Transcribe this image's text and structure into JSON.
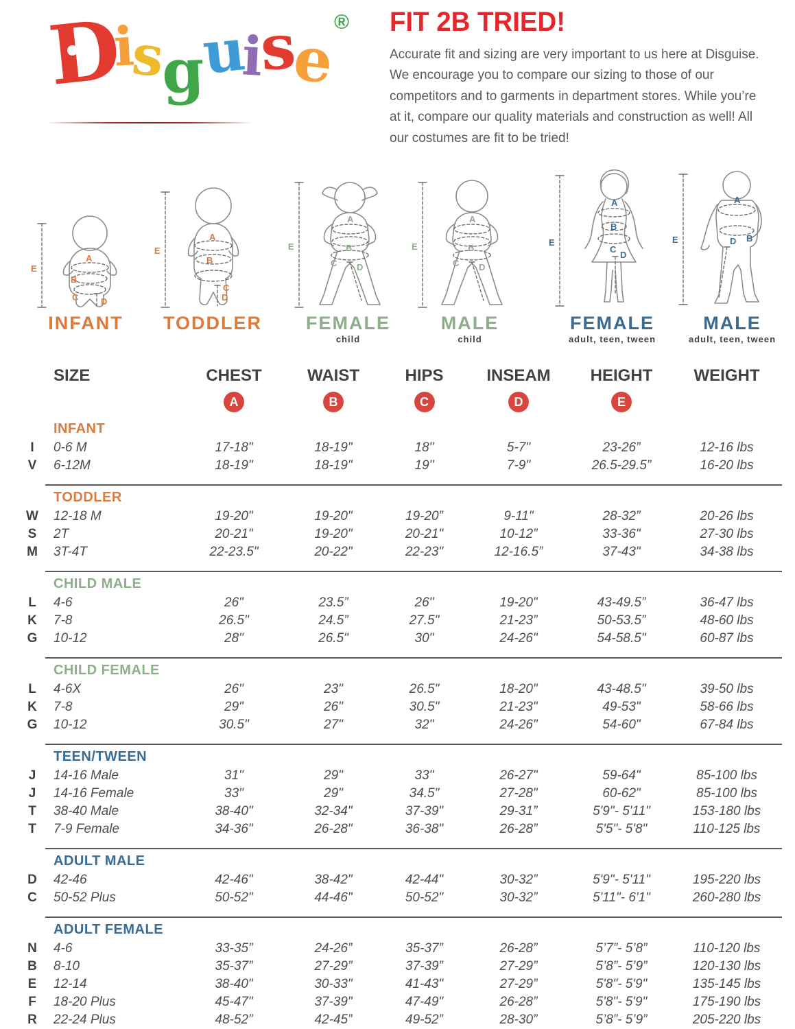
{
  "brand": {
    "name": "Disguise",
    "letters": [
      {
        "ch": "D",
        "color": "#e23a2e"
      },
      {
        "ch": "i",
        "color": "#f5a03a"
      },
      {
        "ch": "s",
        "color": "#efb92c"
      },
      {
        "ch": "g",
        "color": "#3fa748"
      },
      {
        "ch": "u",
        "color": "#3d9bd6"
      },
      {
        "ch": "i",
        "color": "#8f6db5"
      },
      {
        "ch": "s",
        "color": "#e23a2e"
      },
      {
        "ch": "e",
        "color": "#f5a03a"
      }
    ],
    "registered_mark": "®",
    "registered_color": "#3fa748"
  },
  "intro": {
    "title": "FIT 2B TRIED!",
    "title_color": "#e4272c",
    "paragraph": "Accurate fit and sizing are very important to us here at Disguise. We encourage you to compare our sizing to those of our competitors and to garments in department stores. While you’re at it, compare our quality materials and construction as well! All our costumes are fit to be tried!"
  },
  "markers": {
    "a": "A",
    "b": "B",
    "c": "C",
    "d": "D",
    "e": "E"
  },
  "figures": [
    {
      "label": "INFANT",
      "sublabel": "",
      "theme": "#dd7b3d"
    },
    {
      "label": "TODDLER",
      "sublabel": "",
      "theme": "#dd7b3d"
    },
    {
      "label": "FEMALE",
      "sublabel": "child",
      "theme": "#8ead8a"
    },
    {
      "label": "MALE",
      "sublabel": "child",
      "theme": "#8ead8a"
    },
    {
      "label": "FEMALE",
      "sublabel": "adult, teen, tween",
      "theme": "#3a6b92"
    },
    {
      "label": "MALE",
      "sublabel": "adult, teen, tween",
      "theme": "#3a6b92"
    }
  ],
  "table": {
    "headers": [
      "SIZE",
      "CHEST",
      "WAIST",
      "HIPS",
      "INSEAM",
      "HEIGHT",
      "WEIGHT"
    ],
    "badges": [
      "A",
      "B",
      "C",
      "D",
      "E"
    ],
    "badge_color": "#d8453e",
    "sections": [
      {
        "title": "INFANT",
        "color": "#dd7b3d",
        "rows": [
          {
            "code": "I",
            "size": "0-6 M",
            "cells": [
              "17-18\"",
              "18-19\"",
              "18\"",
              "5-7\"",
              "23-26”",
              "12-16 lbs"
            ]
          },
          {
            "code": "V",
            "size": "6-12M",
            "cells": [
              "18-19\"",
              "18-19\"",
              "19\"",
              "7-9\"",
              "26.5-29.5”",
              "16-20 lbs"
            ]
          }
        ]
      },
      {
        "title": "TODDLER",
        "color": "#dd7b3d",
        "rows": [
          {
            "code": "W",
            "size": "12-18 M",
            "cells": [
              "19-20\"",
              "19-20\"",
              "19-20”",
              "9-11\"",
              "28-32”",
              "20-26 lbs"
            ]
          },
          {
            "code": "S",
            "size": "2T",
            "cells": [
              "20-21\"",
              "19-20\"",
              "20-21\"",
              "10-12”",
              "33-36\"",
              "27-30 lbs"
            ]
          },
          {
            "code": "M",
            "size": "3T-4T",
            "cells": [
              "22-23.5\"",
              "20-22\"",
              "22-23\"",
              "12-16.5”",
              "37-43\"",
              "34-38 lbs"
            ]
          }
        ]
      },
      {
        "title": "CHILD MALE",
        "color": "#8ead8a",
        "rows": [
          {
            "code": "L",
            "size": "4-6",
            "cells": [
              "26\"",
              "23.5”",
              "26\"",
              "19-20\"",
              "43-49.5”",
              "36-47 lbs"
            ]
          },
          {
            "code": "K",
            "size": "7-8",
            "cells": [
              "26.5\"",
              "24.5”",
              "27.5\"",
              "21-23”",
              "50-53.5”",
              "48-60 lbs"
            ]
          },
          {
            "code": "G",
            "size": "10-12",
            "cells": [
              "28\"",
              "26.5\"",
              "30\"",
              "24-26\"",
              "54-58.5\"",
              "60-87 lbs"
            ]
          }
        ]
      },
      {
        "title": "CHILD FEMALE",
        "color": "#8ead8a",
        "rows": [
          {
            "code": "L",
            "size": "4-6X",
            "cells": [
              "26\"",
              "23\"",
              "26.5\"",
              "18-20\"",
              "43-48.5\"",
              "39-50 lbs"
            ]
          },
          {
            "code": "K",
            "size": "7-8",
            "cells": [
              "29\"",
              "26\"",
              "30.5\"",
              "21-23\"",
              "49-53\"",
              "58-66 lbs"
            ]
          },
          {
            "code": "G",
            "size": "10-12",
            "cells": [
              "30.5\"",
              "27\"",
              "32\"",
              "24-26\"",
              "54-60\"",
              "67-84 lbs"
            ]
          }
        ]
      },
      {
        "title": "TEEN/TWEEN",
        "color": "#3a6b92",
        "rows": [
          {
            "code": "J",
            "size": "14-16 Male",
            "cells": [
              "31\"",
              "29\"",
              "33\"",
              "26-27\"",
              "59-64\"",
              "85-100 lbs"
            ]
          },
          {
            "code": "J",
            "size": "14-16 Female",
            "cells": [
              "33\"",
              "29\"",
              "34.5\"",
              "27-28\"",
              "60-62\"",
              "85-100 lbs"
            ]
          },
          {
            "code": "T",
            "size": "38-40 Male",
            "cells": [
              "38-40\"",
              "32-34\"",
              "37-39\"",
              "29-31”",
              "5'9\"- 5'11\"",
              "153-180 lbs"
            ]
          },
          {
            "code": "T",
            "size": "7-9 Female",
            "cells": [
              "34-36\"",
              "26-28\"",
              "36-38\"",
              "26-28”",
              "5'5\"- 5'8\"",
              "110-125 lbs"
            ]
          }
        ]
      },
      {
        "title": "ADULT MALE",
        "color": "#3a6b92",
        "rows": [
          {
            "code": "D",
            "size": "42-46",
            "cells": [
              "42-46\"",
              "38-42\"",
              "42-44\"",
              "30-32”",
              "5'9\"- 5'11\"",
              "195-220 lbs"
            ]
          },
          {
            "code": "C",
            "size": "50-52 Plus",
            "cells": [
              "50-52\"",
              "44-46\"",
              "50-52\"",
              "30-32”",
              "5'11\"- 6'1\"",
              "260-280 lbs"
            ]
          }
        ]
      },
      {
        "title": "ADULT FEMALE",
        "color": "#3a6b92",
        "rows": [
          {
            "code": "N",
            "size": "4-6",
            "cells": [
              "33-35”",
              "24-26”",
              "35-37”",
              "26-28”",
              "5’7”- 5’8”",
              "110-120 lbs"
            ]
          },
          {
            "code": "B",
            "size": "8-10",
            "cells": [
              "35-37”",
              "27-29”",
              "37-39”",
              "27-29”",
              "5’8”- 5’9”",
              "120-130 lbs"
            ]
          },
          {
            "code": "E",
            "size": "12-14",
            "cells": [
              "38-40\"",
              "30-33\"",
              "41-43\"",
              "27-29”",
              "5'8\"- 5'9\"",
              "135-145 lbs"
            ]
          },
          {
            "code": "F",
            "size": "18-20 Plus",
            "cells": [
              "45-47\"",
              "37-39\"",
              "47-49\"",
              "26-28”",
              "5'8\"- 5'9\"",
              "175-190 lbs"
            ]
          },
          {
            "code": "R",
            "size": "22-24 Plus",
            "cells": [
              "48-52”",
              "42-45”",
              "49-52”",
              "28-30”",
              "5’8”- 5’9”",
              "205-220 lbs"
            ]
          }
        ]
      }
    ]
  }
}
